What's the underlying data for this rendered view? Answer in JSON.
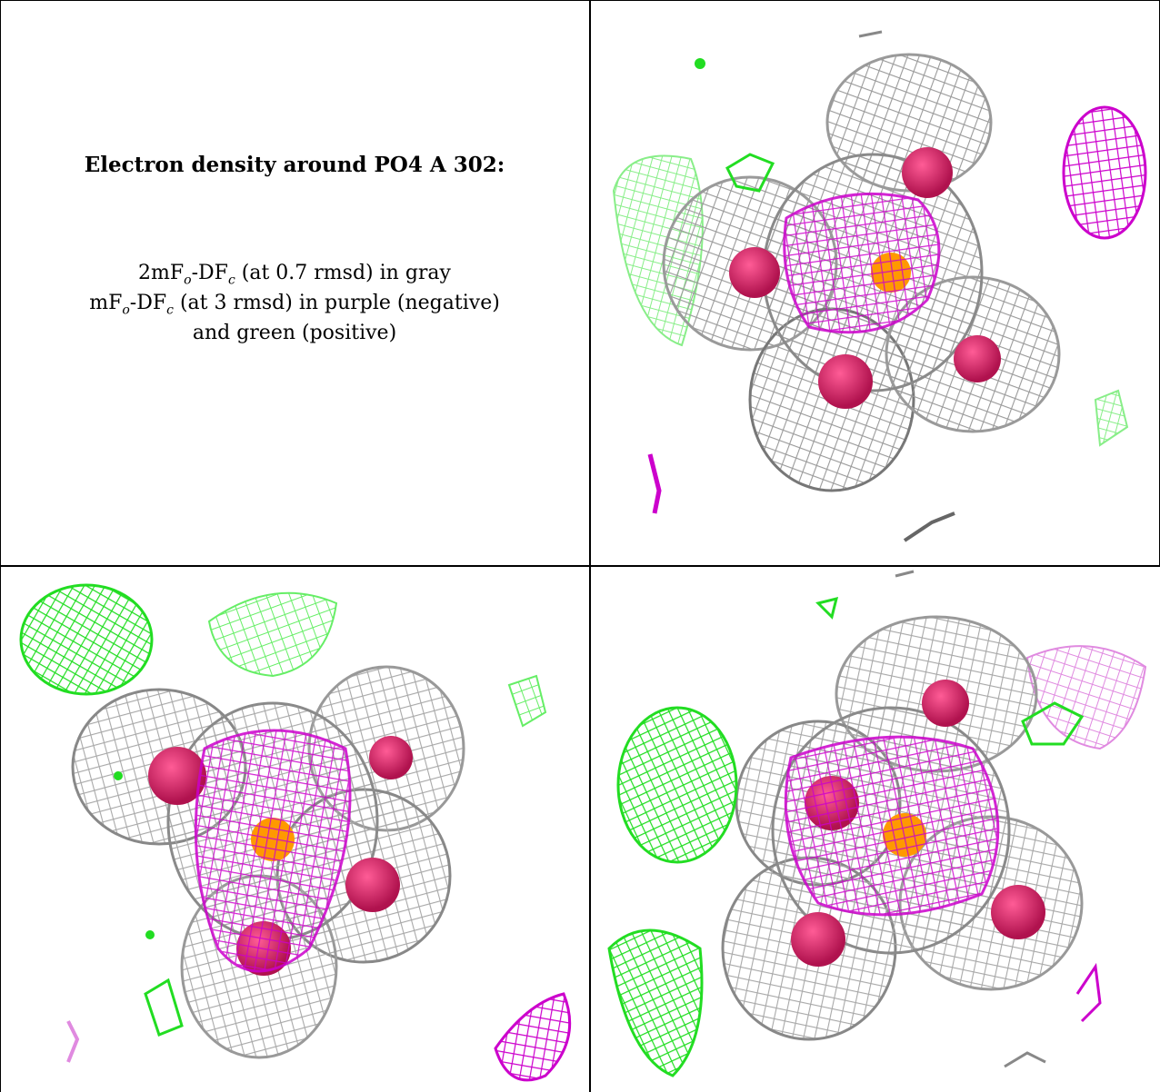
{
  "caption": {
    "title": "Electron density around PO4 A 302:",
    "line1": {
      "pre": "2mF",
      "sub1": "o",
      "mid": "-DF",
      "sub2": "c",
      "post": " (at 0.7 rmsd) in gray"
    },
    "line2": {
      "pre": "mF",
      "sub1": "o",
      "mid": "-DF",
      "sub2": "c",
      "post": " (at 3 rmsd) in purple (negative)"
    },
    "line3": "and green (positive)"
  },
  "colors": {
    "gray_mesh": "#8a8a8a",
    "gray_mesh_light": "#c8c8c8",
    "purple_mesh": "#cc00cc",
    "purple_light": "#e08ae0",
    "green_mesh": "#22dd22",
    "green_light": "#88ee88",
    "oxygen": "#d81b60",
    "phosphorus": "#ff9900"
  },
  "panels": [
    {
      "view": "top-right"
    },
    {
      "view": "bottom-left"
    },
    {
      "view": "bottom-right"
    }
  ]
}
